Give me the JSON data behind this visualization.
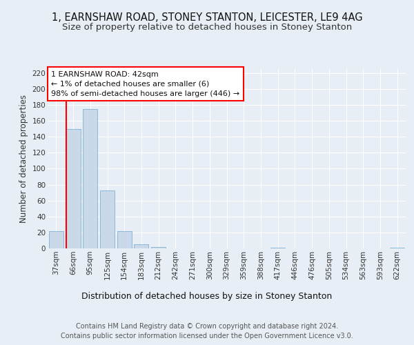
{
  "title1": "1, EARNSHAW ROAD, STONEY STANTON, LEICESTER, LE9 4AG",
  "title2": "Size of property relative to detached houses in Stoney Stanton",
  "xlabel": "Distribution of detached houses by size in Stoney Stanton",
  "ylabel": "Number of detached properties",
  "categories": [
    "37sqm",
    "66sqm",
    "95sqm",
    "125sqm",
    "154sqm",
    "183sqm",
    "212sqm",
    "242sqm",
    "271sqm",
    "300sqm",
    "329sqm",
    "359sqm",
    "388sqm",
    "417sqm",
    "446sqm",
    "476sqm",
    "505sqm",
    "534sqm",
    "563sqm",
    "593sqm",
    "622sqm"
  ],
  "values": [
    22,
    150,
    175,
    73,
    22,
    5,
    2,
    0,
    0,
    0,
    0,
    0,
    0,
    1,
    0,
    0,
    0,
    0,
    0,
    0,
    1
  ],
  "bar_color": "#c9d9ea",
  "bar_edge_color": "#6fa8cc",
  "annotation_box_text": "1 EARNSHAW ROAD: 42sqm\n← 1% of detached houses are smaller (6)\n98% of semi-detached houses are larger (446) →",
  "footer": "Contains HM Land Registry data © Crown copyright and database right 2024.\nContains public sector information licensed under the Open Government Licence v3.0.",
  "ylim": [
    0,
    225
  ],
  "yticks": [
    0,
    20,
    40,
    60,
    80,
    100,
    120,
    140,
    160,
    180,
    200,
    220
  ],
  "bg_color": "#e8eef5",
  "plot_bg_color": "#e8eef5",
  "grid_color": "white",
  "title1_fontsize": 10.5,
  "title2_fontsize": 9.5,
  "xlabel_fontsize": 9,
  "ylabel_fontsize": 8.5,
  "tick_fontsize": 7.5,
  "footer_fontsize": 7
}
